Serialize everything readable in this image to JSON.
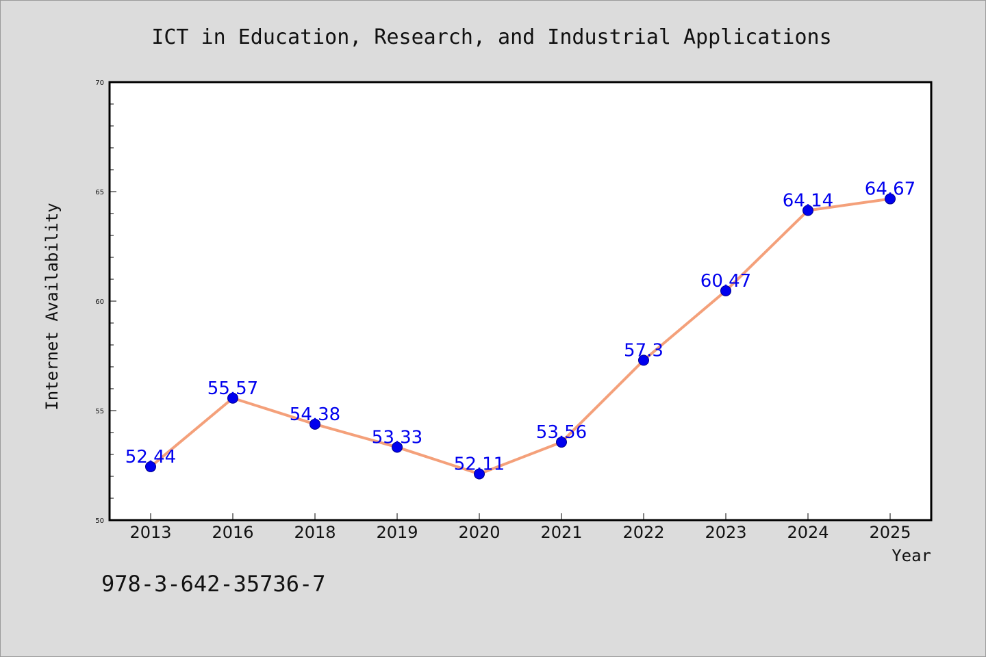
{
  "chart_data": {
    "type": "line",
    "title": "ICT in Education, Research, and Industrial Applications",
    "xlabel": "Year",
    "ylabel": "Internet Availability",
    "categories": [
      "2013",
      "2016",
      "2018",
      "2019",
      "2020",
      "2021",
      "2022",
      "2023",
      "2024",
      "2025"
    ],
    "series": [
      {
        "values": [
          52.44,
          55.57,
          54.38,
          53.33,
          52.11,
          53.56,
          57.3,
          60.47,
          64.14,
          64.67
        ],
        "data_labels": [
          "52.44",
          "55.57",
          "54.38",
          "53.33",
          "52.11",
          "53.56",
          "57.3",
          "60.47",
          "64.14",
          "64.67"
        ],
        "line_color": "#f4a07a",
        "marker_color": "#0000ee"
      }
    ],
    "ylim": [
      50,
      70
    ],
    "yticks": [
      50,
      55,
      60,
      65,
      70
    ],
    "ytick_labels": [
      "50",
      "55",
      "60",
      "65",
      "70"
    ],
    "grid": false,
    "legend": "none"
  },
  "footnote": "978-3-642-35736-7",
  "colors": {
    "background": "#dcdcdc",
    "plot_background": "#ffffff",
    "axis": "#000000"
  }
}
